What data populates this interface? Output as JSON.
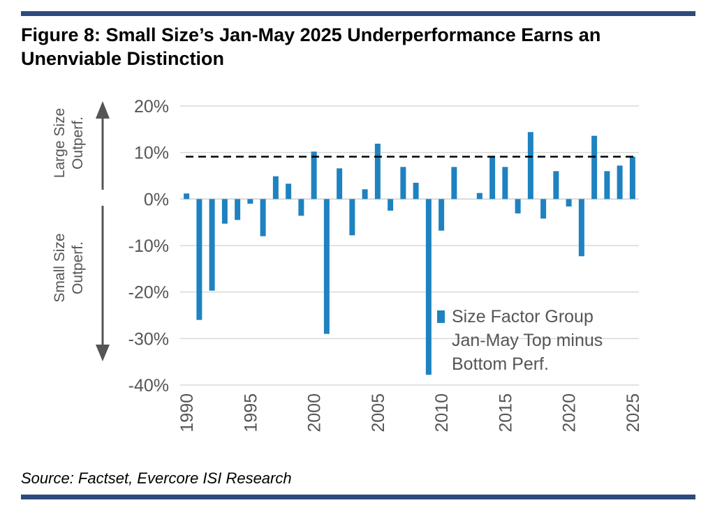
{
  "figure": {
    "title": "Figure 8: Small Size’s Jan-May 2025 Underperformance Earns an Unenviable Distinction",
    "source": "Source: Factset, Evercore ISI Research",
    "rule_color": "#2e4a7d"
  },
  "chart_data": {
    "type": "bar",
    "title": "",
    "xlabel": "",
    "ylabel": "",
    "years": [
      1990,
      1991,
      1992,
      1993,
      1994,
      1995,
      1996,
      1997,
      1998,
      1999,
      2000,
      2001,
      2002,
      2003,
      2004,
      2005,
      2006,
      2007,
      2008,
      2009,
      2010,
      2011,
      2012,
      2013,
      2014,
      2015,
      2016,
      2017,
      2018,
      2019,
      2020,
      2021,
      2022,
      2023,
      2024,
      2025
    ],
    "series": [
      {
        "name": "Size Factor Group Jan-May Top minus Bottom Perf.",
        "color": "#1f82c0",
        "values": [
          1.2,
          -26,
          -19.7,
          -5.3,
          -4.5,
          -1.0,
          -8.0,
          4.9,
          3.3,
          -3.6,
          10.2,
          -29.0,
          6.6,
          -7.8,
          2.1,
          11.9,
          -2.5,
          6.9,
          3.5,
          -37.8,
          -6.8,
          6.9,
          0,
          1.3,
          9.0,
          6.9,
          -3.1,
          14.4,
          -4.2,
          6.0,
          -1.6,
          -12.3,
          13.6,
          6.0,
          7.2,
          9.1
        ]
      }
    ],
    "reference_line": {
      "value": 9.1,
      "style": "dashed",
      "color": "#000000"
    },
    "legend_lines": [
      "Size Factor Group",
      "Jan-May Top minus",
      "Bottom Perf."
    ],
    "legend_position": "bottom-right",
    "ylim": [
      -40,
      20
    ],
    "yticks": [
      20,
      10,
      0,
      -10,
      -20,
      -30,
      -40
    ],
    "ytick_labels": [
      "20%",
      "10%",
      "0%",
      "-10%",
      "-20%",
      "-30%",
      "-40%"
    ],
    "xtick_labels": [
      "1990",
      "1995",
      "2000",
      "2005",
      "2010",
      "2015",
      "2020",
      "2025"
    ],
    "xtick_years": [
      1990,
      1995,
      2000,
      2005,
      2010,
      2015,
      2020,
      2025
    ],
    "grid": true,
    "annotations": {
      "upper_lines": [
        "Large Size",
        "Outperf."
      ],
      "lower_lines": [
        "Small Size",
        "Outperf."
      ]
    }
  }
}
